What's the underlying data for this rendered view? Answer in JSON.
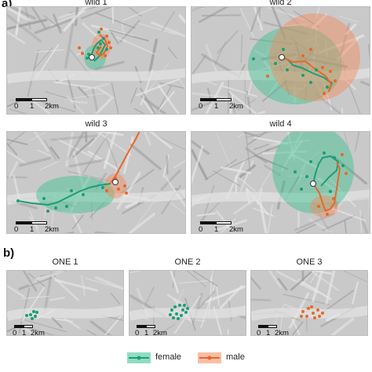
{
  "figure": {
    "panel_a_label": "a)",
    "panel_b_label": "b)"
  },
  "maps": [
    {
      "title": "wild 1",
      "female": {
        "range": [
          [
            120,
            72,
            14,
            16
          ]
        ],
        "track": [
          [
            115,
            70
          ],
          [
            118,
            62
          ],
          [
            122,
            55
          ],
          [
            128,
            50
          ],
          [
            133,
            56
          ],
          [
            129,
            64
          ],
          [
            124,
            72
          ],
          [
            119,
            77
          ]
        ],
        "points": [
          [
            112,
            68
          ],
          [
            124,
            60
          ],
          [
            131,
            48
          ],
          [
            127,
            55
          ],
          [
            118,
            72
          ],
          [
            135,
            62
          ],
          [
            110,
            73
          ],
          [
            125,
            40
          ]
        ]
      },
      "male": {
        "range": [
          [
            128,
            58,
            12,
            16
          ]
        ],
        "track": [
          [
            126,
            43
          ],
          [
            133,
            50
          ],
          [
            136,
            58
          ],
          [
            132,
            66
          ],
          [
            127,
            70
          ],
          [
            122,
            66
          ],
          [
            128,
            58
          ]
        ],
        "points": [
          [
            100,
            60
          ],
          [
            104,
            67
          ],
          [
            135,
            45
          ],
          [
            138,
            53
          ],
          [
            133,
            70
          ],
          [
            128,
            36
          ],
          [
            140,
            60
          ]
        ]
      },
      "release": [
        116,
        72
      ]
    },
    {
      "title": "wild 2",
      "female": {
        "range": [
          [
            375,
            82,
            60,
            50
          ]
        ],
        "track": [
          [
            357,
            72
          ],
          [
            366,
            75
          ],
          [
            372,
            82
          ],
          [
            385,
            86
          ],
          [
            397,
            92
          ],
          [
            412,
            98
          ],
          [
            422,
            105
          ],
          [
            418,
            115
          ]
        ],
        "points": [
          [
            322,
            74
          ],
          [
            350,
            80
          ],
          [
            365,
            88
          ],
          [
            385,
            95
          ],
          [
            402,
            88
          ],
          [
            416,
            110
          ],
          [
            360,
            62
          ],
          [
            395,
            104
          ]
        ]
      },
      "male": {
        "range": [
          [
            400,
            72,
            58,
            56
          ]
        ],
        "track": [
          [
            360,
            72
          ],
          [
            372,
            78
          ],
          [
            388,
            77
          ],
          [
            402,
            88
          ],
          [
            414,
            96
          ],
          [
            421,
            106
          ],
          [
            418,
            116
          ]
        ],
        "points": [
          [
            385,
            70
          ],
          [
            410,
            85
          ],
          [
            420,
            90
          ],
          [
            426,
            102
          ],
          [
            412,
            118
          ],
          [
            395,
            62
          ],
          [
            340,
            96
          ]
        ]
      },
      "release": [
        358,
        72
      ]
    },
    {
      "title": "wild 3",
      "female": {
        "range": [
          [
            95,
            247,
            50,
            24
          ]
        ],
        "track": [
          [
            22,
            255
          ],
          [
            40,
            258
          ],
          [
            60,
            260
          ],
          [
            72,
            257
          ],
          [
            86,
            250
          ],
          [
            100,
            243
          ],
          [
            113,
            238
          ],
          [
            126,
            235
          ],
          [
            140,
            233
          ]
        ],
        "points": [
          [
            22,
            255
          ],
          [
            55,
            252
          ],
          [
            70,
            264
          ],
          [
            90,
            242
          ],
          [
            105,
            247
          ],
          [
            130,
            238
          ],
          [
            60,
            268
          ],
          [
            84,
            262
          ]
        ]
      },
      "male": {
        "range": [
          [
            146,
            236,
            14,
            16
          ]
        ],
        "track": [
          [
            140,
            232
          ],
          [
            148,
            220
          ],
          [
            156,
            205
          ],
          [
            164,
            190
          ],
          [
            171,
            178
          ],
          [
            177,
            166
          ]
        ],
        "points": [
          [
            135,
            242
          ],
          [
            150,
            240
          ],
          [
            158,
            236
          ],
          [
            160,
            245
          ],
          [
            146,
            226
          ]
        ]
      },
      "release": [
        146,
        231
      ]
    },
    {
      "title": "wild 4",
      "female": {
        "range": [
          [
            398,
            215,
            52,
            56
          ]
        ],
        "track": [
          [
            398,
            233
          ],
          [
            401,
            220
          ],
          [
            405,
            208
          ],
          [
            410,
            200
          ],
          [
            420,
            198
          ],
          [
            430,
            205
          ],
          [
            428,
            216
          ],
          [
            418,
            225
          ],
          [
            408,
            236
          ]
        ],
        "points": [
          [
            375,
            218
          ],
          [
            383,
            240
          ],
          [
            395,
            205
          ],
          [
            412,
            194
          ],
          [
            425,
            200
          ],
          [
            436,
            210
          ],
          [
            420,
            243
          ],
          [
            390,
            224
          ]
        ]
      },
      "male": {
        "range": [
          [
            412,
            262,
            18,
            14
          ]
        ],
        "track": [
          [
            400,
            236
          ],
          [
            406,
            245
          ],
          [
            410,
            258
          ],
          [
            414,
            268
          ],
          [
            420,
            265
          ],
          [
            425,
            258
          ],
          [
            432,
            214
          ],
          [
            428,
            206
          ]
        ],
        "points": [
          [
            405,
            262
          ],
          [
            416,
            272
          ],
          [
            424,
            252
          ],
          [
            440,
            220
          ],
          [
            435,
            196
          ]
        ]
      },
      "release": [
        398,
        233
      ]
    },
    {
      "title": "ONE 1",
      "female": {
        "range": [],
        "track": [],
        "points": [
          [
            38,
            400
          ],
          [
            42,
            396
          ],
          [
            44,
            402
          ],
          [
            46,
            397
          ],
          [
            40,
            405
          ],
          [
            33,
            401
          ]
        ]
      },
      "male": {
        "range": [],
        "track": [],
        "points": []
      },
      "release": null
    },
    {
      "title": "ONE 2",
      "female": {
        "range": [],
        "track": [],
        "points": [
          [
            218,
            394
          ],
          [
            222,
            390
          ],
          [
            228,
            388
          ],
          [
            232,
            394
          ],
          [
            224,
            399
          ],
          [
            230,
            401
          ],
          [
            236,
            397
          ],
          [
            216,
            400
          ],
          [
            226,
            405
          ],
          [
            238,
            392
          ],
          [
            234,
            388
          ],
          [
            220,
            404
          ]
        ]
      },
      "male": {
        "range": [],
        "track": [],
        "points": []
      },
      "release": null
    },
    {
      "title": "ONE 3",
      "female": {
        "range": [],
        "track": [],
        "points": []
      },
      "male": {
        "range": [],
        "track": [],
        "points": [
          [
            385,
            396
          ],
          [
            392,
            392
          ],
          [
            398,
            398
          ],
          [
            404,
            394
          ],
          [
            390,
            402
          ],
          [
            400,
            404
          ],
          [
            410,
            398
          ],
          [
            396,
            390
          ],
          [
            383,
            402
          ],
          [
            406,
            402
          ]
        ]
      },
      "release": null
    }
  ],
  "scalebar": {
    "zero": "0",
    "one": "1",
    "two": "2km"
  },
  "legend": {
    "female": "female",
    "male": "male"
  },
  "colors": {
    "female": "#1b9e77",
    "male": "#e8672a",
    "female_fill": "#39c08f",
    "male_fill": "#f3895a"
  }
}
